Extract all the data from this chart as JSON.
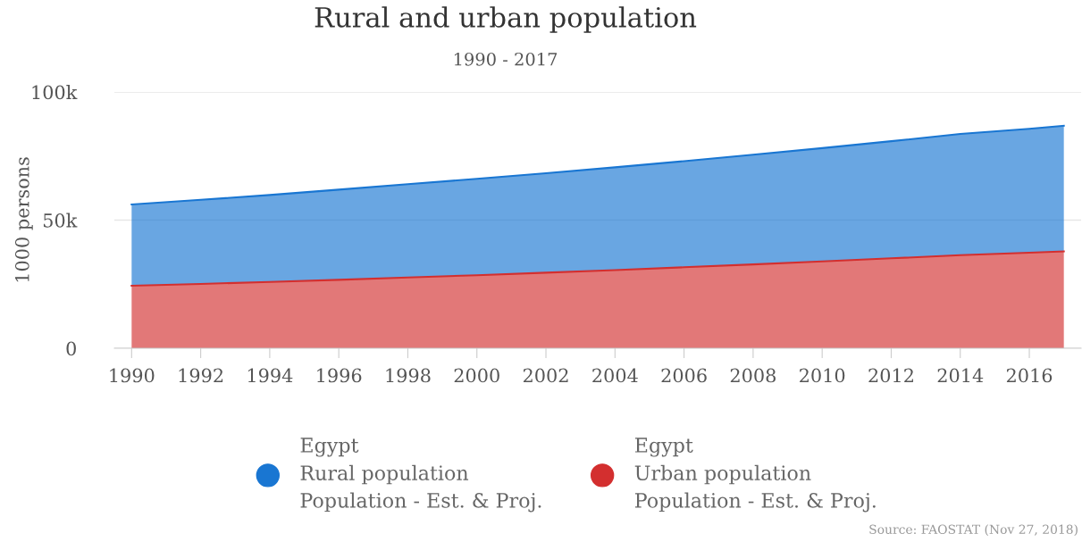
{
  "chart_data": {
    "type": "area",
    "stacked": true,
    "title": "Rural and urban population",
    "subtitle": "1990 - 2017",
    "ylabel": "1000 persons",
    "x": [
      1990,
      1992,
      1994,
      1996,
      1998,
      2000,
      2002,
      2004,
      2006,
      2008,
      2010,
      2012,
      2014,
      2016,
      2017
    ],
    "series": [
      {
        "name": "Egypt\nUrban population\nPopulation - Est. & Proj.",
        "color": "#d32f2f",
        "values": [
          24400,
          25100,
          25900,
          26700,
          27600,
          28500,
          29500,
          30500,
          31600,
          32700,
          33900,
          35100,
          36300,
          37300,
          37800
        ]
      },
      {
        "name": "Egypt\nRural population\nPopulation - Est. & Proj.",
        "color": "#1976d2",
        "values": [
          31700,
          32800,
          33900,
          35200,
          36400,
          37600,
          38800,
          40100,
          41400,
          42800,
          44200,
          45700,
          47300,
          48300,
          49000
        ]
      }
    ],
    "xlim": [
      1989.5,
      2017.5
    ],
    "xticks": [
      1990,
      1992,
      1994,
      1996,
      1998,
      2000,
      2002,
      2004,
      2006,
      2008,
      2010,
      2012,
      2014,
      2016
    ],
    "ylim": [
      0,
      100000
    ],
    "yticks": [
      0,
      {
        "value": 50000,
        "label": "50k"
      },
      {
        "value": 100000,
        "label": "100k"
      }
    ],
    "grid": "y",
    "legend": "bottom",
    "annotations": [
      "Source: FAOSTAT (Nov 27, 2018)"
    ]
  }
}
